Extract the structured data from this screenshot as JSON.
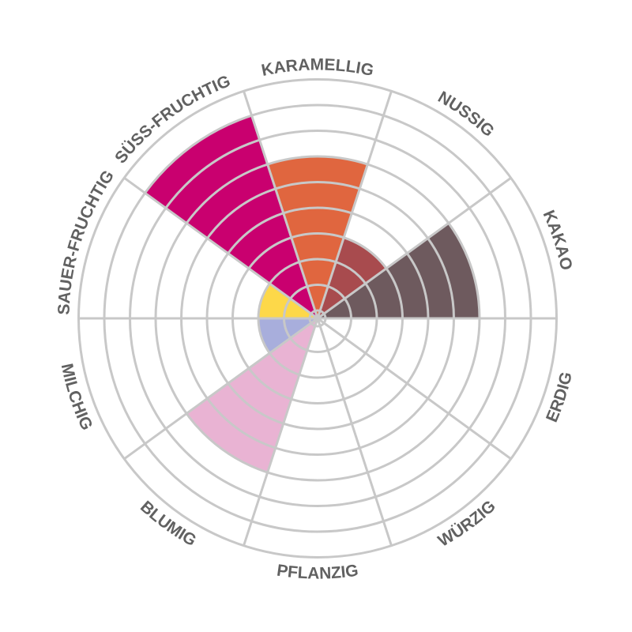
{
  "chart_data": {
    "type": "polar-area",
    "categories": [
      "KAKAO",
      "NUSSIG",
      "KARAMELLIG",
      "SÜSS-FRUCHTIG",
      "SAUER-FRUCHTIG",
      "MILCHIG",
      "BLUMIG",
      "PFLANZIG",
      "WÜRZIG",
      "ERDIG"
    ],
    "values": [
      6,
      3,
      6,
      8,
      2,
      2,
      6,
      0,
      0,
      0
    ],
    "colors": [
      "#6E5A5E",
      "#A84B4E",
      "#E0663F",
      "#C9006F",
      "#FDD849",
      "#A8AEDC",
      "#E9B3D3",
      "#ffffff",
      "#ffffff",
      "#ffffff"
    ],
    "rmax": 9,
    "grid": true,
    "grid_color": "#C8C8C8",
    "label_color": "#616161"
  }
}
